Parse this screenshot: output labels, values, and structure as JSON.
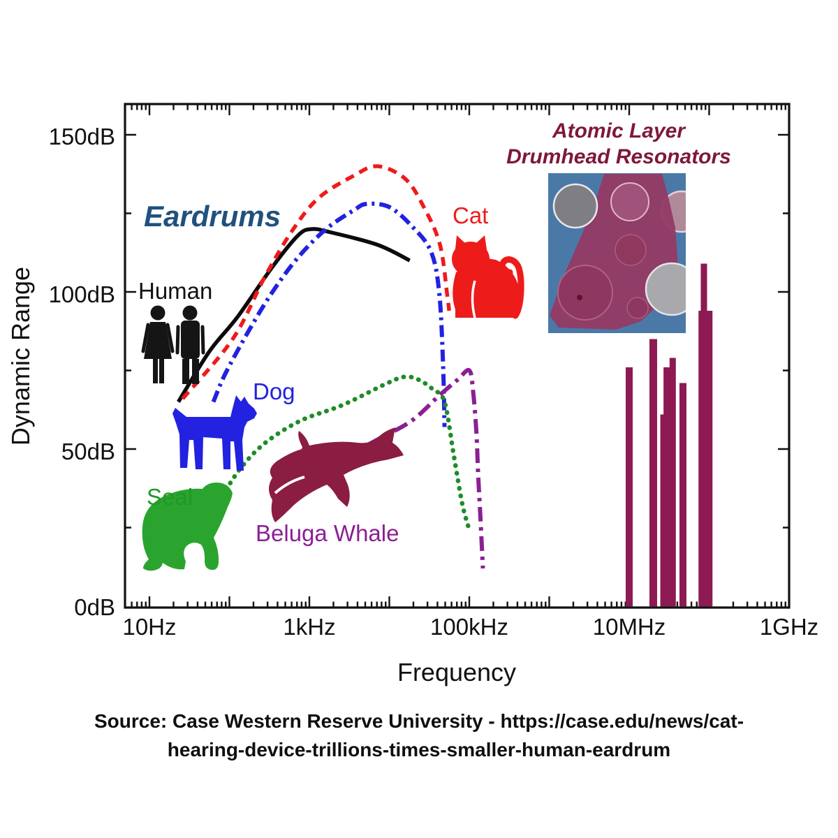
{
  "page": {
    "background": "#ffffff"
  },
  "chart_data": {
    "type": "line+bar",
    "xlabel": "Frequency",
    "ylabel": "Dynamic Range",
    "x_scale": "log",
    "x_ticks": [
      "10Hz",
      "1kHz",
      "100kHz",
      "10MHz",
      "1GHz"
    ],
    "x_tick_values_hz": [
      10,
      1000,
      100000,
      10000000,
      1000000000
    ],
    "y_ticks": [
      "150dB",
      "100dB",
      "50dB",
      "0dB"
    ],
    "y_tick_values_db": [
      150,
      100,
      50,
      0
    ],
    "x_range_hz": [
      5,
      1000000000
    ],
    "y_range_db": [
      0,
      160
    ],
    "grid": false,
    "legend": "none",
    "series": [
      {
        "name": "Human",
        "color": "#0b0b0b",
        "line_style": "solid",
        "width": 5.5,
        "points": [
          [
            23,
            65
          ],
          [
            56,
            81
          ],
          [
            126,
            92
          ],
          [
            346,
            108
          ],
          [
            724,
            118
          ],
          [
            1070,
            120
          ],
          [
            1820,
            119
          ],
          [
            7100,
            115
          ],
          [
            18000,
            110
          ]
        ]
      },
      {
        "name": "Cat",
        "color": "#ee1b1b",
        "line_style": "dashed",
        "width": 5.5,
        "points": [
          [
            26,
            66
          ],
          [
            110,
            85
          ],
          [
            280,
            105
          ],
          [
            630,
            120
          ],
          [
            1320,
            130
          ],
          [
            3600,
            137
          ],
          [
            7100,
            140
          ],
          [
            15800,
            136
          ],
          [
            27000,
            127
          ],
          [
            43000,
            115
          ],
          [
            53000,
            99
          ],
          [
            56000,
            94
          ]
        ]
      },
      {
        "name": "Dog",
        "color": "#2222e0",
        "line_style": "dashdot",
        "width": 6,
        "points": [
          [
            63,
            65
          ],
          [
            89,
            74
          ],
          [
            178,
            88
          ],
          [
            346,
            100
          ],
          [
            724,
            111
          ],
          [
            1620,
            120
          ],
          [
            3600,
            126
          ],
          [
            5200,
            128
          ],
          [
            10000,
            127
          ],
          [
            19000,
            121
          ],
          [
            33000,
            113
          ],
          [
            42000,
            100
          ],
          [
            47000,
            77
          ],
          [
            49000,
            57
          ]
        ]
      },
      {
        "name": "Seal",
        "color": "#1f8c28",
        "line_style": "dotted",
        "width": 6.5,
        "points": [
          [
            81,
            35
          ],
          [
            139,
            44
          ],
          [
            282,
            52
          ],
          [
            774,
            59
          ],
          [
            2600,
            64
          ],
          [
            9500,
            71
          ],
          [
            15800,
            73
          ],
          [
            23500,
            72
          ],
          [
            35000,
            69
          ],
          [
            49000,
            65
          ],
          [
            64000,
            48
          ],
          [
            81000,
            33
          ],
          [
            98000,
            25
          ]
        ]
      },
      {
        "name": "Beluga Whale",
        "color": "#8c1f94",
        "line_style": "longdashdot",
        "width": 6,
        "points": [
          [
            2600,
            47
          ],
          [
            7100,
            53
          ],
          [
            19000,
            59
          ],
          [
            42000,
            67
          ],
          [
            71000,
            72
          ],
          [
            100000,
            75
          ],
          [
            112000,
            68
          ],
          [
            123000,
            55
          ],
          [
            129000,
            42
          ],
          [
            138000,
            28
          ],
          [
            148000,
            12
          ]
        ]
      }
    ],
    "resonator_bars": {
      "name": "Atomic Layer Drumhead Resonators",
      "color": "#8d1a52",
      "bars": [
        {
          "mhz": 10,
          "db": 76,
          "w": 10
        },
        {
          "mhz": 20,
          "db": 85,
          "w": 11
        },
        {
          "mhz": 26,
          "db": 61,
          "w": 6
        },
        {
          "mhz": 30,
          "db": 76,
          "w": 11
        },
        {
          "mhz": 35,
          "db": 79,
          "w": 9
        },
        {
          "mhz": 47,
          "db": 71,
          "w": 10
        },
        {
          "mhz": 90,
          "db": 94,
          "w": 20
        },
        {
          "mhz": 86,
          "db": 109,
          "w": 9
        }
      ]
    },
    "annotations": {
      "eardrums": {
        "text": "Eardrums",
        "color": "#20517e"
      },
      "resonators": {
        "line1": "Atomic Layer",
        "line2": "Drumhead Resonators",
        "color": "#7d1938"
      },
      "labels": {
        "human": {
          "text": "Human",
          "color": "#111111"
        },
        "dog": {
          "text": "Dog",
          "color": "#2222e0"
        },
        "seal": {
          "text": "Seal",
          "color": "#1f9928"
        },
        "beluga": {
          "text": "Beluga Whale",
          "color": "#8c1f94"
        },
        "cat": {
          "text": "Cat",
          "color": "#ee1b1b"
        }
      }
    }
  },
  "source": {
    "line1": "Source: Case Western Reserve University - https://case.edu/news/cat-",
    "line2": "hearing-device-trillions-times-smaller-human-eardrum"
  }
}
